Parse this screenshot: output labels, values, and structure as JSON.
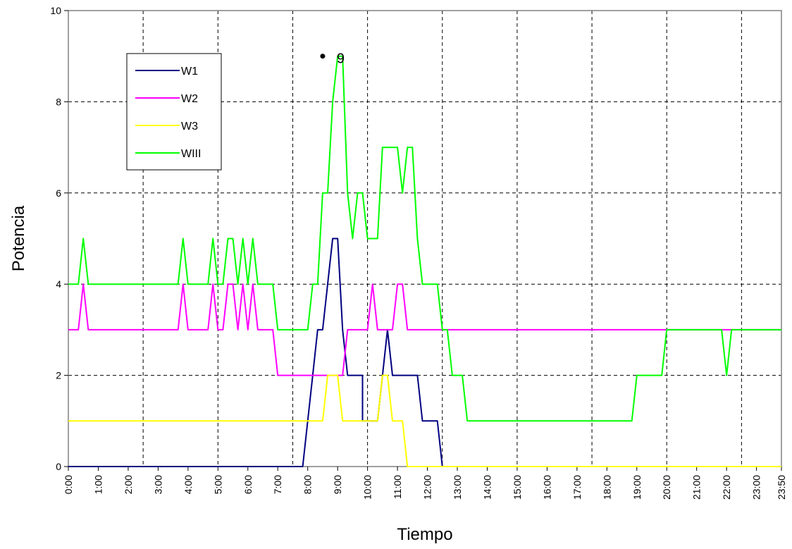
{
  "chart_data": {
    "type": "line",
    "title": "",
    "xlabel": "Tiempo",
    "ylabel": "Potencia",
    "ylim": [
      0,
      10
    ],
    "xlim": [
      "0:00",
      "23:50"
    ],
    "y_ticks": [
      "0",
      "2",
      "4",
      "6",
      "8",
      "10"
    ],
    "x_ticks": [
      "0:00",
      "1:00",
      "2:00",
      "3:00",
      "4:00",
      "5:00",
      "6:00",
      "7:00",
      "8:00",
      "9:00",
      "10:00",
      "11:00",
      "12:00",
      "13:00",
      "14:00",
      "15:00",
      "16:00",
      "17:00",
      "18:00",
      "19:00",
      "20:00",
      "21:00",
      "22:00",
      "23:00",
      "23:50"
    ],
    "grid": true,
    "legend_position": "top-left",
    "annotation": {
      "x": "8:30",
      "y": 9,
      "label": "9"
    },
    "series": [
      {
        "name": "W1",
        "color": "#000080",
        "points": [
          [
            "0:00",
            0
          ],
          [
            "7:50",
            0
          ],
          [
            "8:10",
            2
          ],
          [
            "8:20",
            3
          ],
          [
            "8:30",
            3
          ],
          [
            "8:40",
            4
          ],
          [
            "8:50",
            5
          ],
          [
            "9:00",
            5
          ],
          [
            "9:10",
            3
          ],
          [
            "9:20",
            2
          ],
          [
            "9:50",
            2
          ],
          [
            "9:50",
            1
          ],
          [
            "10:20",
            1
          ],
          [
            "10:40",
            3
          ],
          [
            "10:50",
            2
          ],
          [
            "11:40",
            2
          ],
          [
            "11:50",
            1
          ],
          [
            "12:20",
            1
          ],
          [
            "12:30",
            0
          ],
          [
            "23:50",
            0
          ]
        ]
      },
      {
        "name": "W2",
        "color": "#FF00FF",
        "points": [
          [
            "0:00",
            3
          ],
          [
            "0:20",
            3
          ],
          [
            "0:30",
            4
          ],
          [
            "0:40",
            3
          ],
          [
            "3:40",
            3
          ],
          [
            "3:50",
            4
          ],
          [
            "4:00",
            3
          ],
          [
            "4:40",
            3
          ],
          [
            "4:50",
            4
          ],
          [
            "5:00",
            3
          ],
          [
            "5:10",
            3
          ],
          [
            "5:20",
            4
          ],
          [
            "5:30",
            4
          ],
          [
            "5:40",
            3
          ],
          [
            "5:50",
            4
          ],
          [
            "6:00",
            3
          ],
          [
            "6:10",
            4
          ],
          [
            "6:20",
            3
          ],
          [
            "6:50",
            3
          ],
          [
            "7:00",
            2
          ],
          [
            "9:10",
            2
          ],
          [
            "9:20",
            3
          ],
          [
            "10:00",
            3
          ],
          [
            "10:10",
            4
          ],
          [
            "10:20",
            3
          ],
          [
            "10:50",
            3
          ],
          [
            "11:00",
            4
          ],
          [
            "11:10",
            4
          ],
          [
            "11:20",
            3
          ],
          [
            "12:10",
            3
          ],
          [
            "23:50",
            3
          ]
        ]
      },
      {
        "name": "W3",
        "color": "#FFFF00",
        "points": [
          [
            "0:00",
            1
          ],
          [
            "8:00",
            1
          ],
          [
            "8:30",
            1
          ],
          [
            "8:40",
            2
          ],
          [
            "9:00",
            2
          ],
          [
            "9:10",
            1
          ],
          [
            "10:20",
            1
          ],
          [
            "10:30",
            2
          ],
          [
            "10:40",
            2
          ],
          [
            "10:50",
            1
          ],
          [
            "11:10",
            1
          ],
          [
            "11:20",
            0
          ],
          [
            "23:50",
            0
          ]
        ]
      },
      {
        "name": "WIII",
        "color": "#00FF00",
        "points": [
          [
            "0:00",
            4
          ],
          [
            "0:20",
            4
          ],
          [
            "0:30",
            5
          ],
          [
            "0:40",
            4
          ],
          [
            "3:40",
            4
          ],
          [
            "3:50",
            5
          ],
          [
            "4:00",
            4
          ],
          [
            "4:40",
            4
          ],
          [
            "4:50",
            5
          ],
          [
            "5:00",
            4
          ],
          [
            "5:10",
            4
          ],
          [
            "5:20",
            5
          ],
          [
            "5:30",
            5
          ],
          [
            "5:40",
            4
          ],
          [
            "5:50",
            5
          ],
          [
            "6:00",
            4
          ],
          [
            "6:10",
            5
          ],
          [
            "6:20",
            4
          ],
          [
            "6:50",
            4
          ],
          [
            "7:00",
            3
          ],
          [
            "8:00",
            3
          ],
          [
            "8:10",
            4
          ],
          [
            "8:20",
            4
          ],
          [
            "8:30",
            6
          ],
          [
            "8:40",
            6
          ],
          [
            "8:50",
            8
          ],
          [
            "9:00",
            9
          ],
          [
            "9:10",
            9
          ],
          [
            "9:20",
            6
          ],
          [
            "9:30",
            5
          ],
          [
            "9:40",
            6
          ],
          [
            "9:50",
            6
          ],
          [
            "10:00",
            5
          ],
          [
            "10:20",
            5
          ],
          [
            "10:30",
            7
          ],
          [
            "11:00",
            7
          ],
          [
            "11:10",
            6
          ],
          [
            "11:20",
            7
          ],
          [
            "11:30",
            7
          ],
          [
            "11:40",
            5
          ],
          [
            "11:50",
            4
          ],
          [
            "12:20",
            4
          ],
          [
            "12:30",
            3
          ],
          [
            "12:40",
            3
          ],
          [
            "12:50",
            2
          ],
          [
            "13:10",
            2
          ],
          [
            "13:20",
            1
          ],
          [
            "18:50",
            1
          ],
          [
            "19:00",
            2
          ],
          [
            "19:50",
            2
          ],
          [
            "20:00",
            3
          ],
          [
            "21:50",
            3
          ],
          [
            "22:00",
            2
          ],
          [
            "22:10",
            3
          ],
          [
            "23:50",
            3
          ]
        ]
      }
    ]
  }
}
